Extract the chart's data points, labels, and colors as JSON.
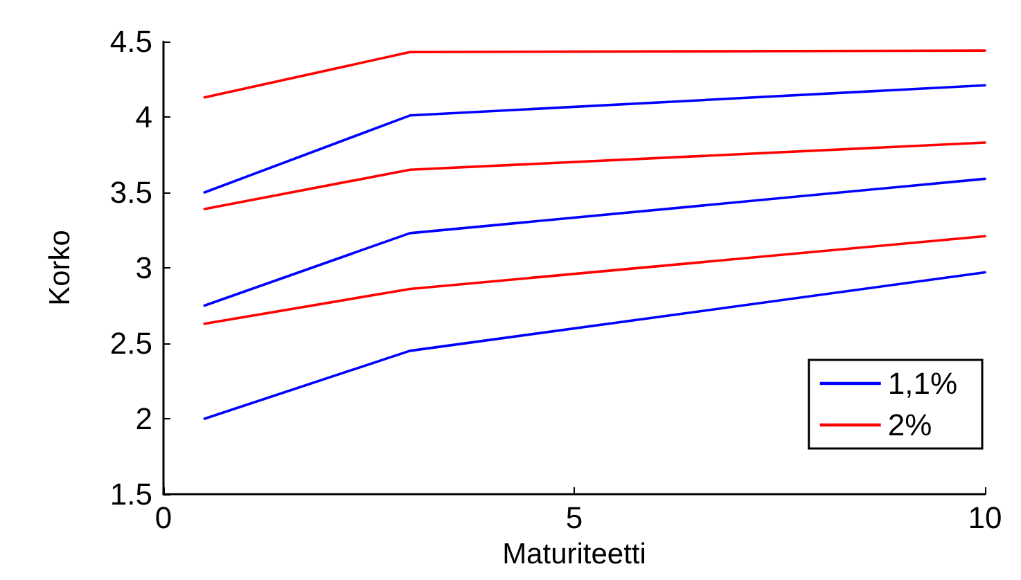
{
  "chart_data": {
    "type": "line",
    "xlabel": "Maturiteetti",
    "ylabel": "Korko",
    "x": [
      0.5,
      3,
      10
    ],
    "series": [
      {
        "name": "1,1%",
        "color": "#0000ff",
        "values": [
          2.0,
          2.45,
          2.97
        ]
      },
      {
        "name": "2%",
        "color": "#ff0000",
        "values": [
          2.63,
          2.86,
          3.21
        ]
      },
      {
        "color": "#0000ff",
        "values": [
          2.75,
          3.23,
          3.59
        ]
      },
      {
        "color": "#ff0000",
        "values": [
          3.39,
          3.65,
          3.83
        ]
      },
      {
        "color": "#0000ff",
        "values": [
          3.5,
          4.01,
          4.21
        ]
      },
      {
        "color": "#ff0000",
        "values": [
          4.13,
          4.43,
          4.44
        ]
      }
    ],
    "xlim": [
      0,
      10
    ],
    "xticks": [
      0,
      5,
      10
    ],
    "ylim": [
      1.5,
      4.5
    ],
    "yticks": [
      1.5,
      2,
      2.5,
      3,
      3.5,
      4,
      4.5
    ],
    "grid": false,
    "legend": "bottom right",
    "marker": "none",
    "line_style": "solid"
  }
}
